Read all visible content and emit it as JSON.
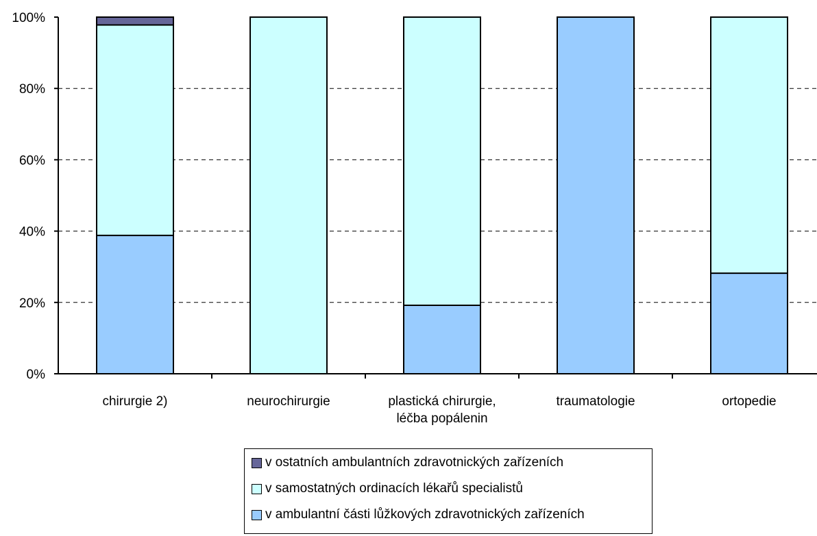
{
  "chart_data": {
    "type": "bar",
    "stacked": true,
    "normalized": true,
    "categories": [
      [
        "chirurgie 2)"
      ],
      [
        "neurochirurgie"
      ],
      [
        "plastická chirurgie,",
        "léčba popálenin"
      ],
      [
        "traumatologie"
      ],
      [
        "ortopedie"
      ]
    ],
    "series": [
      {
        "name": "v ambulantní části lůžkových zdravotnických zařízeních",
        "color": "#99ccff",
        "values": [
          38.8,
          0,
          19.2,
          100,
          28.2
        ]
      },
      {
        "name": "v samostatných ordinacích lékařů specialistů",
        "color": "#ccffff",
        "values": [
          59.0,
          100,
          80.8,
          0,
          71.8
        ]
      },
      {
        "name": "v ostatních ambulantních zdravotnických zařízeních",
        "color": "#666699",
        "values": [
          2.2,
          0,
          0,
          0,
          0
        ]
      }
    ],
    "ylim": [
      0,
      100
    ],
    "yticks": [
      "0%",
      "20%",
      "40%",
      "60%",
      "80%",
      "100%"
    ],
    "grid": "dashed horizontal",
    "legend_position": "bottom"
  }
}
